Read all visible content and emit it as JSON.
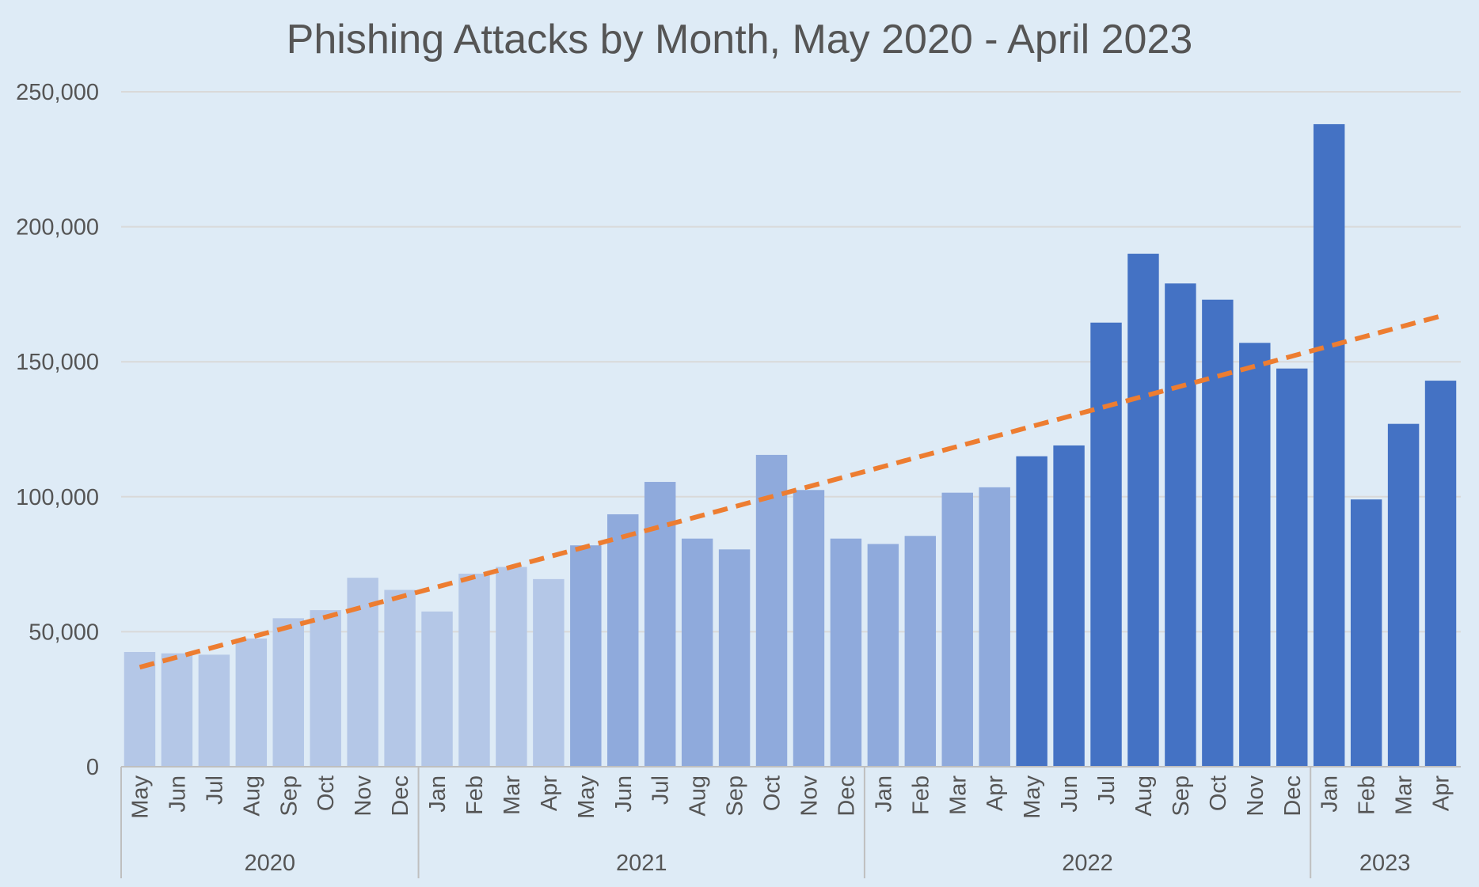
{
  "chart_data": {
    "type": "bar",
    "title": "Phishing Attacks by Month, May 2020 - April 2023",
    "xlabel": "",
    "ylabel": "",
    "ylim": [
      0,
      250000
    ],
    "yticks": [
      "0",
      "50,000",
      "100,000",
      "150,000",
      "200,000",
      "250,000"
    ],
    "grid": true,
    "legend": "none",
    "categories": [
      "May",
      "Jun",
      "Jul",
      "Aug",
      "Sep",
      "Oct",
      "Nov",
      "Dec",
      "Jan",
      "Feb",
      "Mar",
      "Apr",
      "May",
      "Jun",
      "Jul",
      "Aug",
      "Sep",
      "Oct",
      "Nov",
      "Dec",
      "Jan",
      "Feb",
      "Mar",
      "Apr",
      "May",
      "Jun",
      "Jul",
      "Aug",
      "Sep",
      "Oct",
      "Nov",
      "Dec",
      "Jan",
      "Feb",
      "Mar",
      "Apr"
    ],
    "groups": [
      {
        "label": "2020",
        "count": 8
      },
      {
        "label": "2021",
        "count": 12
      },
      {
        "label": "2022",
        "count": 12
      },
      {
        "label": "2023",
        "count": 4
      }
    ],
    "values": [
      42500,
      42000,
      41500,
      47500,
      55000,
      58000,
      70000,
      65500,
      57500,
      71500,
      74000,
      69500,
      82000,
      93500,
      105500,
      84500,
      80500,
      115500,
      102500,
      84500,
      82500,
      85500,
      101500,
      103500,
      115000,
      119000,
      164500,
      190000,
      179000,
      173000,
      157000,
      147500,
      238000,
      99000,
      127000,
      143000
    ],
    "bar_color_ranges": [
      {
        "from": 0,
        "to": 11,
        "color": "#b4c7e7"
      },
      {
        "from": 12,
        "to": 23,
        "color": "#8faadc"
      },
      {
        "from": 24,
        "to": 35,
        "color": "#4472c4"
      }
    ],
    "trendline": {
      "type": "linear",
      "style": "dashed",
      "color": "#ed7d31"
    },
    "colors": {
      "background": "#deebf6",
      "gridline": "#d9d9d9",
      "axis_line": "#bfbfbf",
      "text": "#555555"
    }
  }
}
